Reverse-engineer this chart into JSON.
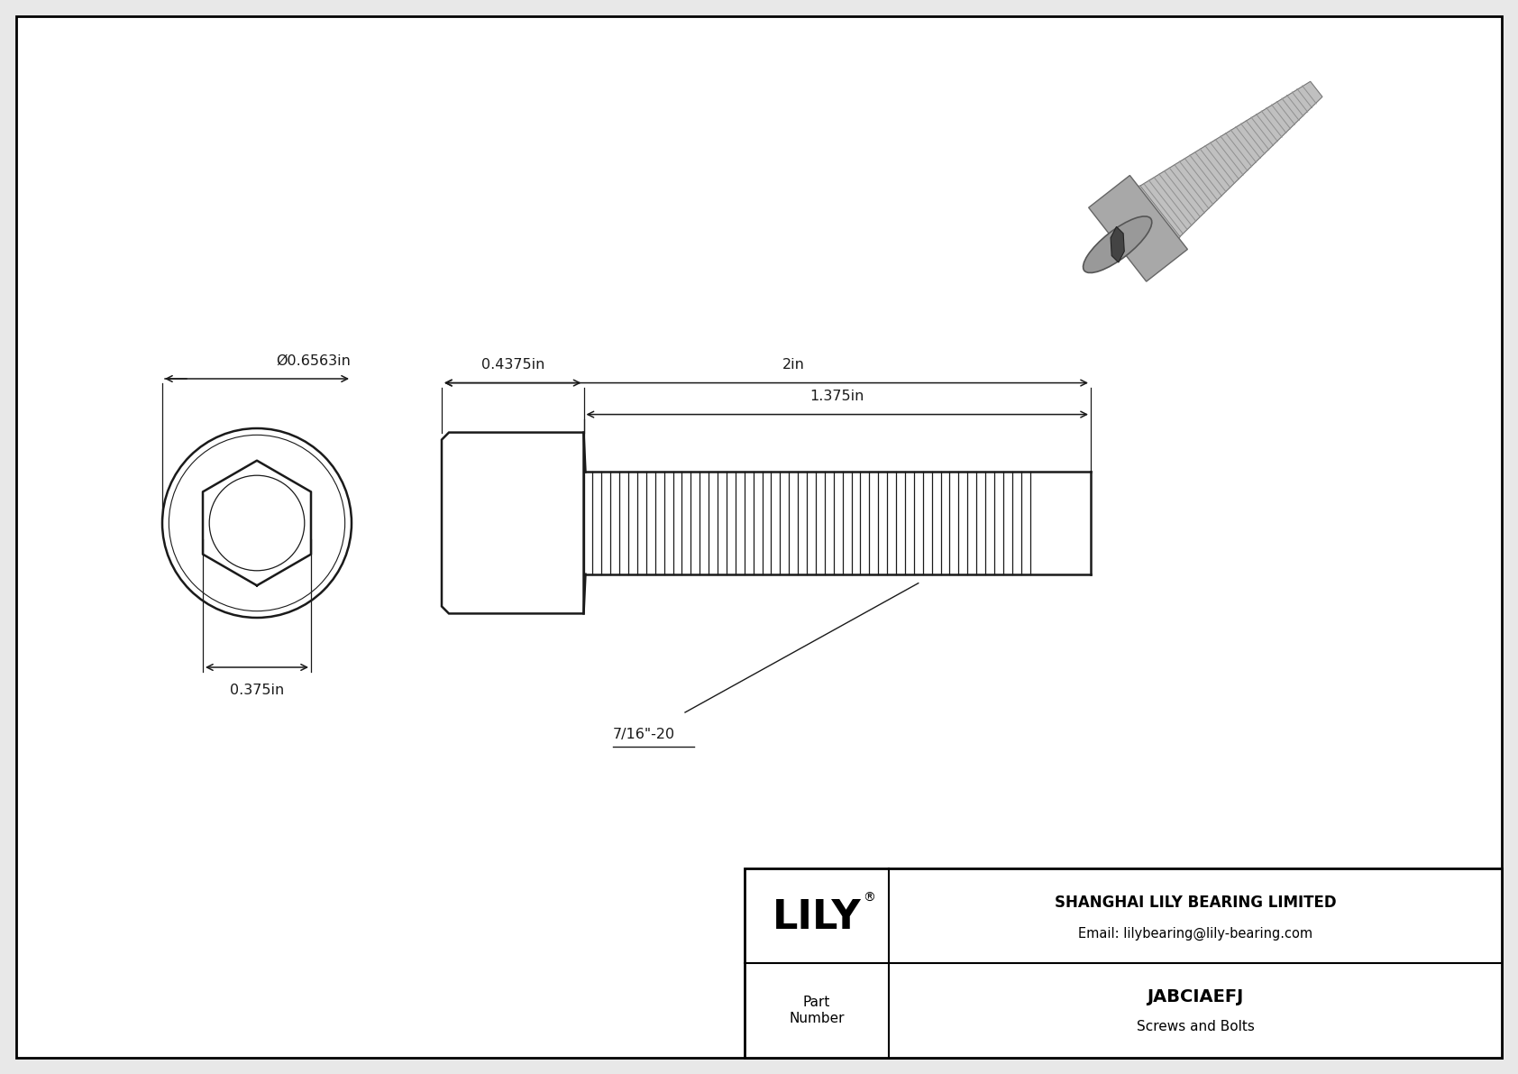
{
  "bg_color": "#e8e8e8",
  "drawing_bg": "#ffffff",
  "border_color": "#000000",
  "line_color": "#1a1a1a",
  "title_company": "SHANGHAI LILY BEARING LIMITED",
  "title_email": "Email: lilybearing@lily-bearing.com",
  "part_number": "JABCIAEFJ",
  "part_category": "Screws and Bolts",
  "part_label": "Part\nNumber",
  "dim_total_length": "2in",
  "dim_thread_length": "1.375in",
  "dim_head_width": "0.4375in",
  "dim_outer_dia": "Ø0.6563in",
  "dim_hex_drive": "0.375in",
  "thread_label": "7/16\"-20",
  "lily_text": "LILY",
  "lily_reg": "®",
  "lw": 1.5,
  "lw_thick": 1.8,
  "lw_dim": 1.1,
  "font_dim": 11.5,
  "font_title": 11,
  "font_part": 14,
  "font_lily": 30
}
